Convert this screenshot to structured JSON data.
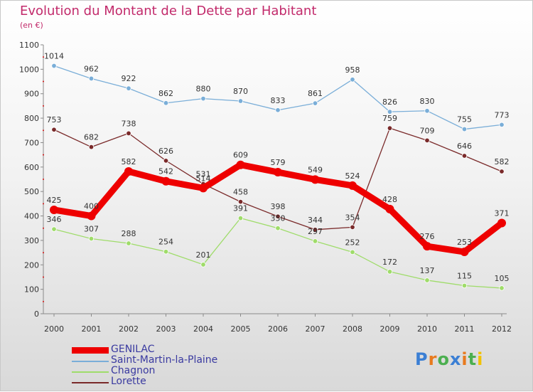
{
  "chart_data": {
    "type": "line",
    "title": "Evolution du Montant de la Dette par Habitant",
    "subtitle": "(en €)",
    "x": [
      "2000",
      "2001",
      "2002",
      "2003",
      "2004",
      "2005",
      "2006",
      "2007",
      "2008",
      "2009",
      "2010",
      "2011",
      "2012"
    ],
    "ylim": [
      0,
      1100
    ],
    "yticks": [
      0,
      100,
      200,
      300,
      400,
      500,
      600,
      700,
      800,
      900,
      1000,
      1100
    ],
    "grid": false,
    "legend_position": "bottom-left",
    "series": [
      {
        "name": "GENILAC",
        "color": "#ee0000",
        "values": [
          425,
          400,
          582,
          542,
          514,
          609,
          579,
          549,
          524,
          428,
          276,
          253,
          371
        ]
      },
      {
        "name": "Saint-Martin-la-Plaine",
        "color": "#7aaed8",
        "values": [
          1014,
          962,
          922,
          862,
          880,
          870,
          833,
          861,
          958,
          826,
          830,
          755,
          773
        ]
      },
      {
        "name": "Chagnon",
        "color": "#9fdc6a",
        "values": [
          346,
          307,
          288,
          254,
          201,
          391,
          350,
          297,
          252,
          172,
          137,
          115,
          105
        ]
      },
      {
        "name": "Lorette",
        "color": "#7a2a2a",
        "values": [
          753,
          682,
          738,
          626,
          531,
          458,
          398,
          344,
          354,
          759,
          709,
          646,
          582
        ]
      }
    ]
  },
  "logo": {
    "text": "Proxiti",
    "letters": [
      {
        "ch": "P",
        "color": "#3b7fd4"
      },
      {
        "ch": "r",
        "color": "#e87a1e"
      },
      {
        "ch": "o",
        "color": "#4caf50"
      },
      {
        "ch": "x",
        "color": "#3b7fd4"
      },
      {
        "ch": "i",
        "color": "#e87a1e"
      },
      {
        "ch": "t",
        "color": "#4caf50"
      },
      {
        "ch": "i",
        "color": "#f2c200"
      }
    ]
  }
}
